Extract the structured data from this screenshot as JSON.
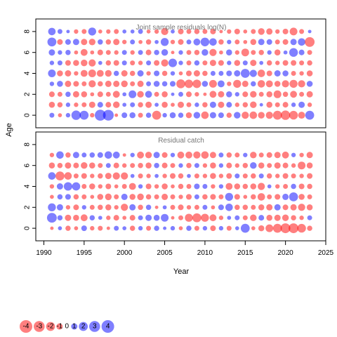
{
  "chart_data": [
    {
      "type": "scatter",
      "subtype": "bubble",
      "title": "Joint sample residuals log(N)",
      "ylabel": "Age",
      "xlim": [
        1989,
        2025
      ],
      "ylim": [
        -1.2,
        9.2
      ],
      "yticks": [
        "0",
        "2",
        "4",
        "6",
        "8"
      ],
      "x": [
        1991,
        1992,
        1993,
        1994,
        1995,
        1996,
        1997,
        1998,
        1999,
        2000,
        2001,
        2002,
        2003,
        2004,
        2005,
        2006,
        2007,
        2008,
        2009,
        2010,
        2011,
        2012,
        2013,
        2014,
        2015,
        2016,
        2017,
        2018,
        2019,
        2020,
        2021,
        2022,
        2023
      ],
      "ages": [
        0,
        1,
        2,
        3,
        4,
        5,
        6,
        7,
        8
      ],
      "colors": {
        "positive": "#0000ff",
        "negative": "#ff0000"
      },
      "residuals": [
        [
          0.6,
          -0.4,
          0.5,
          2.2,
          2.0,
          -0.5,
          3.0,
          2.9,
          -0.3,
          0.8,
          0.9,
          -0.6,
          0.7,
          -2.0,
          0.5,
          0.9,
          0.7,
          -0.9,
          1.1,
          -1.4,
          1.0,
          0.8,
          -0.7,
          1.1,
          -1.3,
          -1.4,
          -1.1,
          -1.3,
          -2.0,
          -2.2,
          -1.9,
          -1.2,
          2.0
        ],
        [
          -0.9,
          -0.7,
          0.5,
          -0.5,
          -0.6,
          -1.0,
          0.8,
          -0.8,
          -1.1,
          0.4,
          0.6,
          -0.7,
          -1.0,
          0.4,
          -0.9,
          -0.4,
          -1.0,
          -0.6,
          0.5,
          -0.7,
          1.0,
          -1.0,
          0.8,
          -0.5,
          -0.7,
          -1.1,
          0.3,
          -0.9,
          -0.6,
          -0.8,
          0.5,
          1.0,
          -0.5
        ],
        [
          -0.8,
          -0.6,
          0.7,
          -1.0,
          -0.9,
          -0.4,
          -0.8,
          -0.6,
          -1.2,
          0.4,
          1.5,
          -1.1,
          1.2,
          -0.6,
          -0.9,
          0.3,
          0.6,
          -0.8,
          -0.5,
          -0.3,
          -1.2,
          -1.0,
          0.9,
          0.5,
          -0.8,
          -1.1,
          -0.6,
          -0.9,
          -1.5,
          -0.7,
          -1.2,
          -0.6,
          -1.0
        ],
        [
          0.5,
          0.9,
          -1.0,
          -0.8,
          -0.6,
          -1.3,
          -0.7,
          -1.0,
          -1.0,
          -1.1,
          -0.6,
          -1.0,
          0.6,
          0.9,
          0.7,
          0.8,
          -2.0,
          -1.8,
          -1.8,
          0.9,
          -1.5,
          1.2,
          -0.5,
          -1.6,
          -1.0,
          0.7,
          -1.4,
          -1.2,
          -0.9,
          -1.3,
          -1.6,
          -1.3,
          0.9
        ],
        [
          1.5,
          -0.9,
          -1.0,
          -0.5,
          -1.2,
          -1.5,
          -1.2,
          -1.1,
          0.7,
          -1.0,
          -0.7,
          1.0,
          -0.5,
          0.8,
          -0.7,
          0.5,
          -0.4,
          -0.8,
          -1.0,
          -0.7,
          0.6,
          0.6,
          0.8,
          1.0,
          2.0,
          1.3,
          -1.4,
          -0.8,
          1.0,
          0.9,
          -0.6,
          -0.5,
          -0.9
        ],
        [
          0.5,
          0.6,
          -0.8,
          -0.9,
          -1.1,
          -1.3,
          0.4,
          -0.7,
          -0.8,
          0.6,
          -0.6,
          -0.5,
          0.6,
          -0.8,
          -1.3,
          1.8,
          0.5,
          -0.6,
          0.7,
          -0.6,
          -1.0,
          -0.8,
          0.5,
          -0.9,
          0.6,
          -1.0,
          0.4,
          -0.7,
          -0.5,
          -0.8,
          -0.8,
          -0.6,
          -0.7
        ],
        [
          1.0,
          0.5,
          0.7,
          -0.4,
          -1.2,
          -0.4,
          -0.8,
          -0.6,
          -0.5,
          0.6,
          -0.5,
          0.6,
          -0.8,
          0.7,
          1.1,
          -0.3,
          0.5,
          -0.6,
          -0.7,
          1.1,
          -1.3,
          -0.4,
          0.9,
          -0.5,
          -1.5,
          -0.6,
          -0.7,
          0.5,
          -0.9,
          0.4,
          1.9,
          0.8,
          -0.6
        ],
        [
          2.0,
          -0.8,
          0.8,
          1.0,
          -1.0,
          -1.1,
          0.7,
          -0.7,
          -1.0,
          -0.5,
          0.6,
          -0.4,
          -0.7,
          0.4,
          1.6,
          -0.5,
          -0.8,
          0.6,
          1.2,
          1.9,
          1.4,
          -0.7,
          0.5,
          -0.6,
          -0.4,
          -0.9,
          1.0,
          0.8,
          -0.6,
          -0.8,
          1.0,
          1.4,
          -2.4
        ],
        [
          1.4,
          0.6,
          0.3,
          -0.5,
          -0.6,
          1.6,
          -0.4,
          -0.5,
          -0.6,
          0.4,
          0.4,
          0.6,
          -0.4,
          -0.5,
          -1.3,
          0.4,
          -0.8,
          -0.6,
          -0.7,
          -0.6,
          -0.8,
          -0.3,
          -0.5,
          -0.8,
          -0.4,
          -0.6,
          -1.1,
          -1.0,
          -0.5,
          -0.8,
          -1.5,
          -0.6,
          0.3
        ]
      ]
    },
    {
      "type": "scatter",
      "subtype": "bubble",
      "title": "Residual catch",
      "xlabel": "Year",
      "ylabel": "Age",
      "xlim": [
        1989,
        2025
      ],
      "ylim": [
        -1.2,
        9.2
      ],
      "xticks": [
        "1990",
        "1995",
        "2000",
        "2005",
        "2010",
        "2015",
        "2020",
        "2025"
      ],
      "yticks": [
        "0",
        "2",
        "4",
        "6",
        "8"
      ],
      "x": [
        1991,
        1992,
        1993,
        1994,
        1995,
        1996,
        1997,
        1998,
        1999,
        2000,
        2001,
        2002,
        2003,
        2004,
        2005,
        2006,
        2007,
        2008,
        2009,
        2010,
        2011,
        2012,
        2013,
        2014,
        2015,
        2016,
        2017,
        2018,
        2019,
        2020,
        2021,
        2022,
        2023
      ],
      "ages": [
        0,
        1,
        2,
        3,
        4,
        5,
        6,
        7
      ],
      "colors": {
        "positive": "#0000ff",
        "negative": "#ff0000"
      },
      "residuals": [
        [
          -0.3,
          0.4,
          -0.7,
          -0.4,
          0.8,
          -0.5,
          -0.6,
          -0.3,
          0.6,
          0.4,
          -0.7,
          0.5,
          -0.6,
          0.7,
          0.3,
          0.5,
          -0.4,
          0.7,
          -0.6,
          0.5,
          -0.8,
          0.5,
          -0.6,
          0.4,
          2.0,
          -0.4,
          -0.9,
          -1.5,
          -2.0,
          -2.4,
          -2.4,
          -1.9,
          -0.7
        ],
        [
          2.4,
          0.7,
          -1.0,
          -0.9,
          -1.2,
          0.7,
          0.4,
          -0.5,
          -0.8,
          -0.4,
          -0.8,
          0.6,
          1.0,
          0.9,
          1.5,
          -0.3,
          -0.6,
          -1.6,
          -2.0,
          -1.6,
          -1.2,
          -0.5,
          0.4,
          0.6,
          -0.6,
          -1.1,
          0.8,
          -0.9,
          -1.0,
          -1.1,
          -0.7,
          -0.5,
          0.6
        ],
        [
          1.6,
          1.0,
          -0.5,
          -0.8,
          0.5,
          -0.6,
          -0.7,
          -0.9,
          -0.5,
          -1.3,
          1.0,
          -0.7,
          0.7,
          -0.3,
          0.4,
          -0.6,
          -0.8,
          -0.5,
          -0.6,
          0.6,
          -0.4,
          0.8,
          1.4,
          -0.7,
          -0.7,
          -0.6,
          -0.9,
          -1.0,
          1.0,
          -0.8,
          -1.0,
          -1.3,
          -0.9
        ],
        [
          -0.4,
          0.7,
          0.8,
          -0.7,
          -0.6,
          -0.4,
          -0.9,
          -1.1,
          -0.6,
          1.0,
          -0.9,
          -1.1,
          -0.7,
          -0.6,
          -1.0,
          -0.6,
          -0.5,
          -0.8,
          0.6,
          -0.7,
          -0.8,
          -0.6,
          1.6,
          -0.8,
          -0.4,
          -0.7,
          -1.4,
          -0.6,
          -0.8,
          1.0,
          2.0,
          -0.9,
          -0.6
        ],
        [
          -0.5,
          1.0,
          1.8,
          1.7,
          -0.6,
          -0.9,
          -0.5,
          -0.8,
          -0.4,
          -0.6,
          -1.2,
          0.5,
          -0.8,
          -0.5,
          -0.9,
          -0.4,
          -0.7,
          -0.6,
          0.8,
          0.6,
          -0.5,
          0.5,
          -1.2,
          -0.9,
          -0.7,
          -0.9,
          -1.3,
          0.4,
          -0.5,
          -0.6,
          0.7,
          -0.8,
          -0.7
        ],
        [
          1.4,
          -2.0,
          -1.4,
          -0.6,
          -0.8,
          -0.5,
          -0.7,
          -1.0,
          -1.3,
          -1.3,
          0.4,
          -0.6,
          -0.5,
          0.4,
          -0.5,
          -0.8,
          -0.7,
          0.4,
          -0.6,
          -0.5,
          -0.9,
          -0.5,
          -0.8,
          0.6,
          -0.6,
          -0.7,
          0.6,
          -0.7,
          -0.5,
          -0.8,
          -0.6,
          -0.5,
          -0.8
        ],
        [
          -0.9,
          -0.7,
          -1.0,
          -0.8,
          -1.1,
          -0.9,
          -0.6,
          0.6,
          -0.8,
          -0.5,
          -0.6,
          -0.7,
          -0.9,
          0.7,
          -0.8,
          -0.6,
          0.5,
          -0.7,
          0.6,
          -0.5,
          -0.9,
          0.5,
          -0.8,
          -0.5,
          -0.7,
          1.1,
          -0.9,
          -0.6,
          -1.0,
          -0.8,
          -0.5,
          -1.5,
          -0.9
        ],
        [
          -0.5,
          1.4,
          -0.7,
          1.0,
          0.6,
          0.7,
          0.8,
          1.4,
          1.2,
          -0.3,
          0.5,
          -1.2,
          -1.1,
          1.0,
          -0.8,
          0.5,
          -1.2,
          -1.2,
          -1.3,
          -1.4,
          -1.0,
          0.6,
          -0.7,
          -0.6,
          0.5,
          -1.1,
          -0.6,
          -0.8,
          -1.0,
          -1.2,
          0.5,
          -0.5,
          -1.0
        ]
      ]
    }
  ],
  "legend": {
    "items": [
      {
        "label": "-4",
        "value": -4
      },
      {
        "label": "-3",
        "value": -3
      },
      {
        "label": "-2",
        "value": -2
      },
      {
        "label": "-1",
        "value": -1
      },
      {
        "label": "0",
        "value": 0
      },
      {
        "label": "1",
        "value": 1
      },
      {
        "label": "2",
        "value": 2
      },
      {
        "label": "3",
        "value": 3
      },
      {
        "label": "4",
        "value": 4
      }
    ]
  }
}
